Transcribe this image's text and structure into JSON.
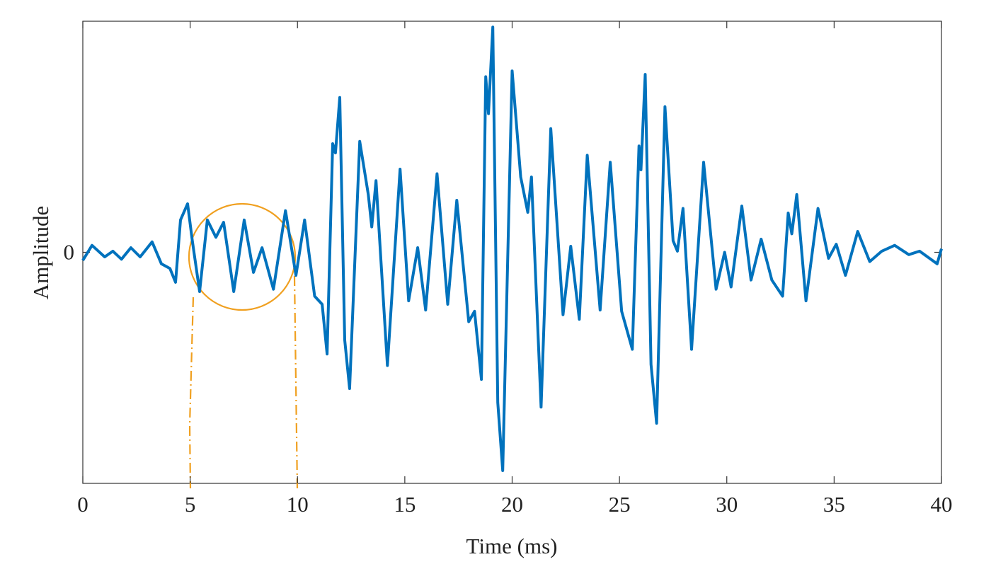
{
  "chart_data": {
    "type": "line",
    "xlabel": "Time (ms)",
    "ylabel": "Amplitude",
    "xlim": [
      0,
      40
    ],
    "xticks": [
      0,
      5,
      10,
      15,
      20,
      25,
      30,
      35,
      40
    ],
    "ylim": [
      -1,
      1
    ],
    "yticks": [
      0
    ],
    "grid": false,
    "series": [
      {
        "color": "#0072bd",
        "x": [
          0,
          0.43,
          1.02,
          1.4,
          1.8,
          2.24,
          2.67,
          3.23,
          3.66,
          4.06,
          4.32,
          4.55,
          4.88,
          5.1,
          5.44,
          5.8,
          6.2,
          6.56,
          7.03,
          7.52,
          7.95,
          8.35,
          8.88,
          9.44,
          9.93,
          10.33,
          10.8,
          11.15,
          11.38,
          11.64,
          11.77,
          11.97,
          12.2,
          12.43,
          12.9,
          13.3,
          13.46,
          13.66,
          14.19,
          14.78,
          15.18,
          15.6,
          15.97,
          16.5,
          17.0,
          17.42,
          17.98,
          18.25,
          18.57,
          18.77,
          18.9,
          19.1,
          19.33,
          19.56,
          20.0,
          20.4,
          20.73,
          20.9,
          21.35,
          21.8,
          22.37,
          22.73,
          23.13,
          23.5,
          24.1,
          24.57,
          25.1,
          25.6,
          25.91,
          26.0,
          26.2,
          26.47,
          26.73,
          27.12,
          27.5,
          27.7,
          27.96,
          28.36,
          28.92,
          29.5,
          29.9,
          30.2,
          30.7,
          31.13,
          31.6,
          32.1,
          32.6,
          32.86,
          33.03,
          33.26,
          33.69,
          34.25,
          34.74,
          35.1,
          35.53,
          36.1,
          36.66,
          37.22,
          37.82,
          38.48,
          38.98,
          39.8,
          40
        ],
        "values": [
          -0.035,
          0.03,
          -0.02,
          0.005,
          -0.03,
          0.02,
          -0.02,
          0.045,
          -0.05,
          -0.07,
          -0.13,
          0.14,
          0.21,
          0.05,
          -0.17,
          0.14,
          0.065,
          0.13,
          -0.17,
          0.14,
          -0.087,
          0.02,
          -0.16,
          0.18,
          -0.1,
          0.14,
          -0.19,
          -0.225,
          -0.44,
          0.47,
          0.43,
          0.67,
          -0.38,
          -0.59,
          0.48,
          0.25,
          0.11,
          0.31,
          -0.49,
          0.36,
          -0.21,
          0.02,
          -0.25,
          0.34,
          -0.225,
          0.225,
          -0.3,
          -0.255,
          -0.55,
          0.76,
          0.6,
          0.975,
          -0.65,
          -0.945,
          0.785,
          0.326,
          0.173,
          0.326,
          -0.67,
          0.535,
          -0.27,
          0.026,
          -0.29,
          0.42,
          -0.25,
          0.39,
          -0.255,
          -0.42,
          0.46,
          0.357,
          0.77,
          -0.485,
          -0.74,
          0.63,
          0.05,
          0.005,
          0.19,
          -0.42,
          0.39,
          -0.16,
          0,
          -0.15,
          0.2,
          -0.12,
          0.057,
          -0.12,
          -0.19,
          0.17,
          0.08,
          0.25,
          -0.21,
          0.19,
          -0.026,
          0.035,
          -0.1,
          0.09,
          -0.04,
          0.005,
          0.03,
          -0.01,
          0.005,
          -0.05,
          0.015
        ]
      }
    ]
  }
}
